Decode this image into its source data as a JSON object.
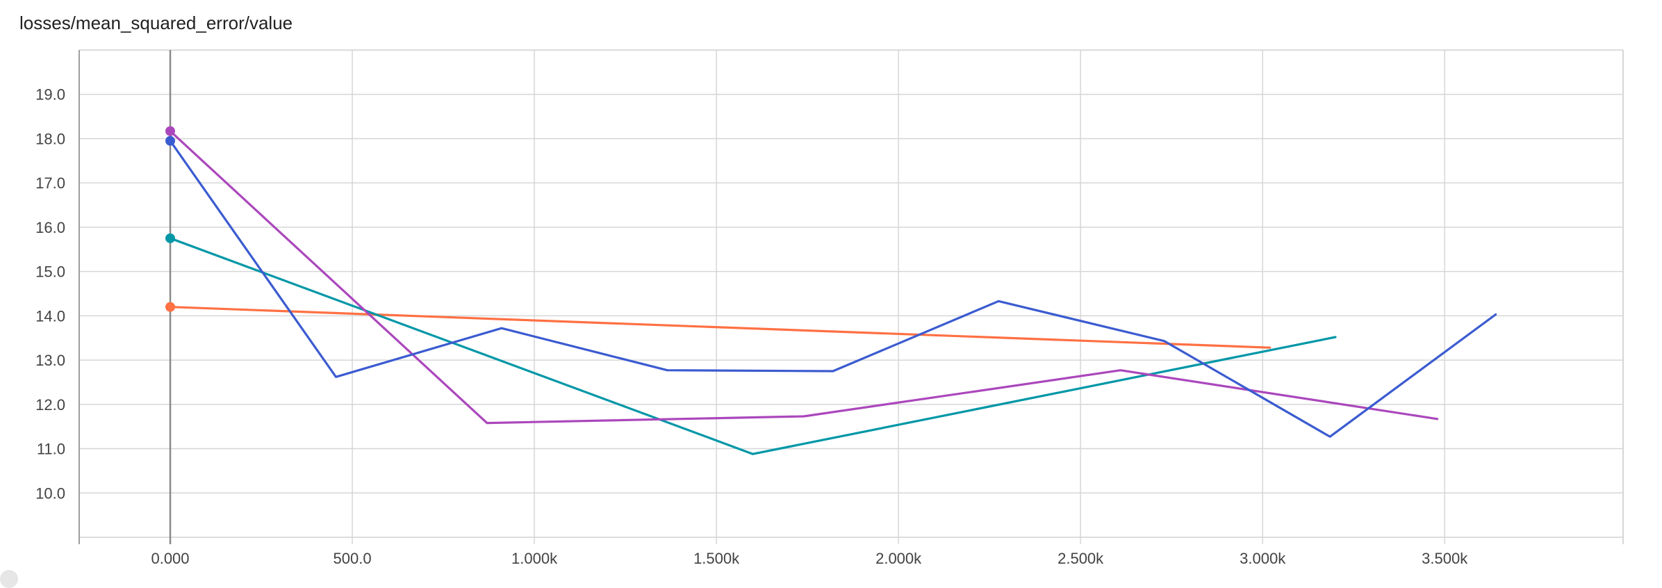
{
  "chart_data": {
    "type": "line",
    "title": "losses/mean_squared_error/value",
    "xlabel": "",
    "ylabel": "",
    "xlim": [
      -250,
      3990
    ],
    "ylim": [
      9.0,
      20.0
    ],
    "grid": true,
    "x_ticks": [
      {
        "value": 0,
        "label": "0.000"
      },
      {
        "value": 500,
        "label": "500.0"
      },
      {
        "value": 1000,
        "label": "1.000k"
      },
      {
        "value": 1500,
        "label": "1.500k"
      },
      {
        "value": 2000,
        "label": "2.000k"
      },
      {
        "value": 2500,
        "label": "2.500k"
      },
      {
        "value": 3000,
        "label": "3.000k"
      },
      {
        "value": 3500,
        "label": "3.500k"
      }
    ],
    "y_ticks": [
      {
        "value": 10,
        "label": "10.0"
      },
      {
        "value": 11,
        "label": "11.0"
      },
      {
        "value": 12,
        "label": "12.0"
      },
      {
        "value": 13,
        "label": "13.0"
      },
      {
        "value": 14,
        "label": "14.0"
      },
      {
        "value": 15,
        "label": "15.0"
      },
      {
        "value": 16,
        "label": "16.0"
      },
      {
        "value": 17,
        "label": "17.0"
      },
      {
        "value": 18,
        "label": "18.0"
      },
      {
        "value": 19,
        "label": "19.0"
      }
    ],
    "series": [
      {
        "color": "#ff7043",
        "x": [
          0,
          3020
        ],
        "y": [
          14.2,
          13.28
        ]
      },
      {
        "color": "#0097a7",
        "x": [
          0,
          1600,
          3200
        ],
        "y": [
          15.75,
          10.88,
          13.52
        ]
      },
      {
        "color": "#ab47bc",
        "x": [
          0,
          870,
          1740,
          2610,
          3480
        ],
        "y": [
          18.17,
          11.58,
          11.73,
          12.77,
          11.67
        ]
      },
      {
        "color": "#3b5bd0",
        "x": [
          0,
          455,
          910,
          1365,
          1820,
          2275,
          2730,
          3185,
          3640
        ],
        "y": [
          17.95,
          12.62,
          13.72,
          12.77,
          12.75,
          14.33,
          13.43,
          11.27,
          14.03
        ]
      }
    ]
  }
}
